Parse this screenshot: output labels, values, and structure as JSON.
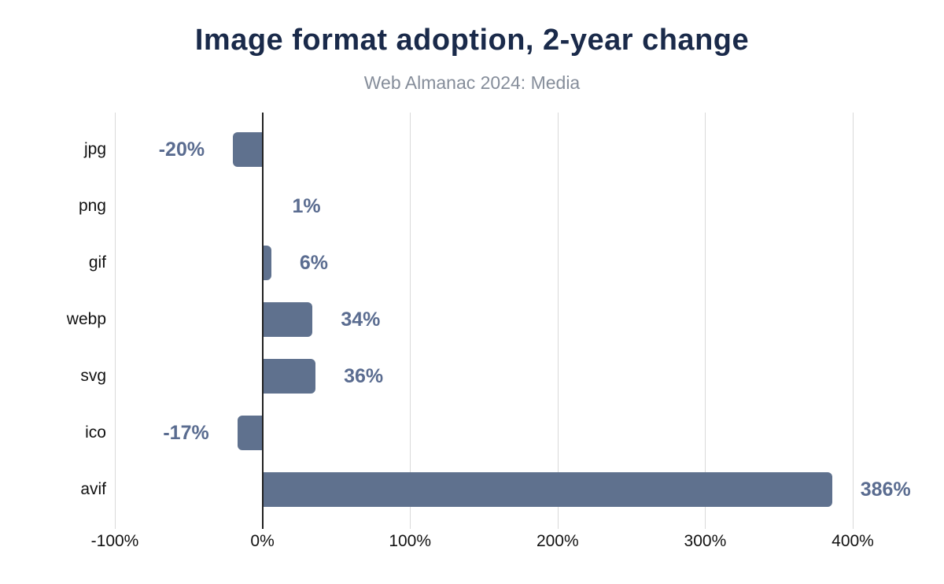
{
  "chart_data": {
    "type": "bar",
    "orientation": "horizontal",
    "title": "Image format adoption, 2-year change",
    "subtitle": "Web Almanac 2024: Media",
    "categories": [
      "jpg",
      "png",
      "gif",
      "webp",
      "svg",
      "ico",
      "avif"
    ],
    "values": [
      -20,
      1,
      6,
      34,
      36,
      -17,
      386
    ],
    "value_labels": [
      "-20%",
      "1%",
      "6%",
      "34%",
      "36%",
      "-17%",
      "386%"
    ],
    "xlabel": "",
    "ylabel": "",
    "xlim": [
      -100,
      400
    ],
    "x_ticks": [
      -100,
      0,
      100,
      200,
      300,
      400
    ],
    "x_tick_labels": [
      "-100%",
      "0%",
      "100%",
      "200%",
      "300%",
      "400%"
    ],
    "grid": "vertical-on",
    "legend": "none"
  },
  "colors": {
    "bar": "#5f718e",
    "value_label": "#5a6c90",
    "title": "#1a2a4a",
    "subtitle": "#858d9a",
    "gridline": "#d9d9d9",
    "zero_axis": "#212121",
    "tick_text": "#111111",
    "category_text": "#111111",
    "background": "#ffffff"
  }
}
